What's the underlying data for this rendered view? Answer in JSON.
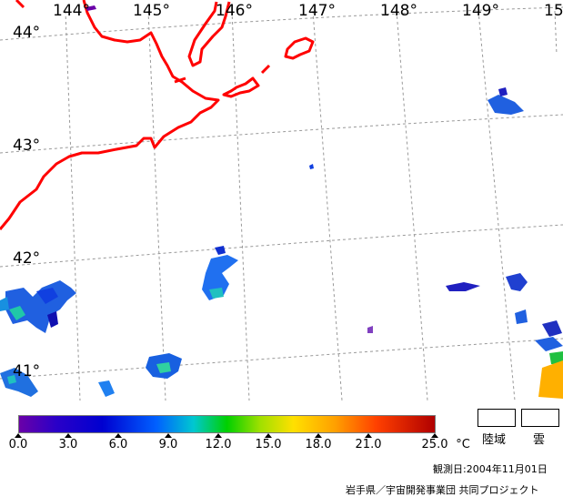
{
  "map": {
    "lon_labels": [
      "144°",
      "145°",
      "146°",
      "147°",
      "148°",
      "149°",
      "15"
    ],
    "lat_labels": [
      "44°",
      "43°",
      "42°",
      "41°"
    ],
    "coast_color": "#ff0000",
    "grid_color": "#999999"
  },
  "colorbar": {
    "tick_labels": [
      "0.0",
      "3.0",
      "6.0",
      "9.0",
      "12.0",
      "15.0",
      "18.0",
      "21.0",
      "25.0"
    ],
    "unit": "°C"
  },
  "legend": {
    "land_label": "陸域",
    "cloud_label": "雲"
  },
  "footer": {
    "date": "観測日:2004年11月01日",
    "credit": "岩手県／宇宙開発事業団 共同プロジェクト"
  }
}
